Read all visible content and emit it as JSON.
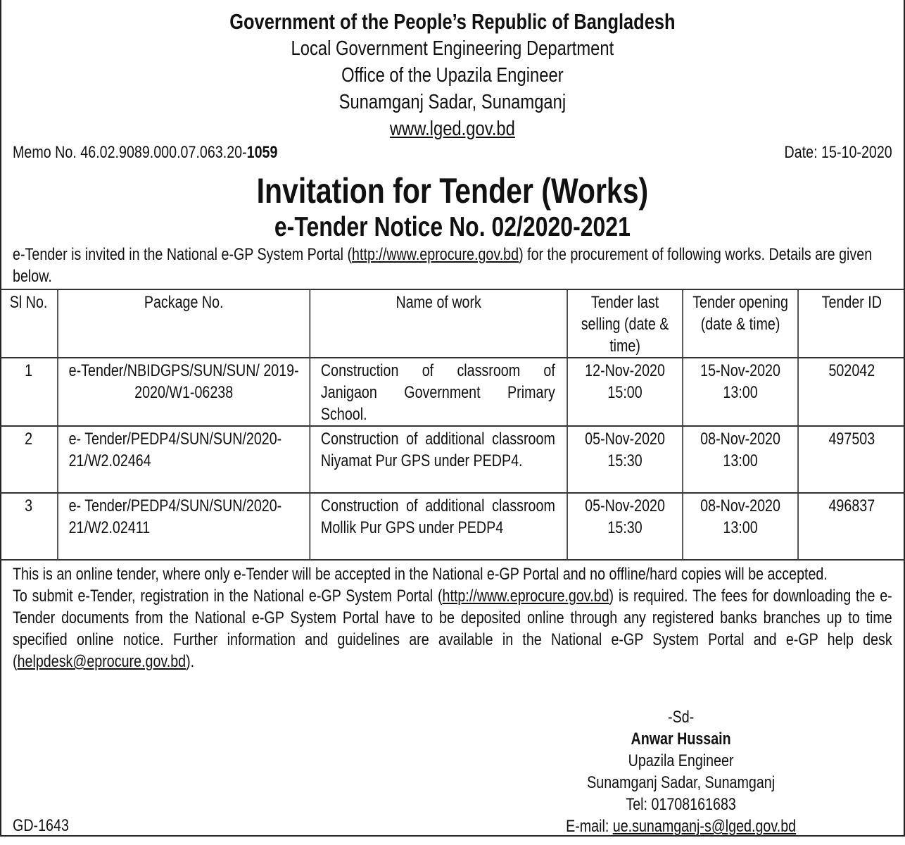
{
  "header": {
    "line1": "Government of the People’s Republic of Bangladesh",
    "line2": "Local Government Engineering Department",
    "line3": "Office of the Upazila Engineer",
    "line4": "Sunamganj Sadar, Sunamganj",
    "website": "www.lged.gov.bd"
  },
  "memo": {
    "prefix": "Memo No. 46.02.9089.000.07.063.20-",
    "number": "1059",
    "date": "Date: 15-10-2020"
  },
  "title": "Invitation for Tender (Works)",
  "subtitle": "e-Tender Notice No. 02/2020-2021",
  "intro": {
    "before": "e-Tender is invited in the National e-GP System Portal (",
    "link": "http://www.eprocure.gov.bd",
    "after": ") for the procurement of following works. Details are given below."
  },
  "table": {
    "headers": [
      "Sl No.",
      "Package No.",
      "Name of work",
      "Tender last selling (date & time)",
      "Tender opening (date & time)",
      "Tender ID"
    ],
    "rows": [
      {
        "sl": "1",
        "package": "e-Tender/NBIDGPS/SUN/SUN/ 2019-2020/W1-06238",
        "work": "Construction of classroom of Janigaon Government Primary School.",
        "selling": "12-Nov-2020 15:00",
        "opening": "15-Nov-2020 13:00",
        "id": "502042"
      },
      {
        "sl": "2",
        "package": "e- Tender/PEDP4/SUN/SUN/2020-21/W2.02464",
        "work": "Construction of additional classroom Niyamat Pur GPS under PEDP4.",
        "selling": "05-Nov-2020 15:30",
        "opening": "08-Nov-2020 13:00",
        "id": "497503"
      },
      {
        "sl": "3",
        "package": "e- Tender/PEDP4/SUN/SUN/2020-21/W2.02411",
        "work": "Construction of additional classroom Mollik Pur GPS under PEDP4",
        "selling": "05-Nov-2020 15:30",
        "opening": "08-Nov-2020 13:00",
        "id": "496837"
      }
    ]
  },
  "note1": "This is an online tender, where only e-Tender will be accepted in the National e-GP Portal and no offline/hard copies will be accepted.",
  "note2": {
    "before": "To submit e-Tender, registration in the National e-GP System Portal (",
    "link": "http://www.eprocure.gov.bd",
    "middle": ") is required. The fees for downloading the e-Tender documents from the National e-GP System Portal have to be deposited online through any registered banks branches up to time specified online notice. Further information and guidelines are available in the National e-GP System Portal and e-GP help desk (",
    "email": "helpdesk@eprocure.gov.bd",
    "after": ")."
  },
  "signature": {
    "sd": "-Sd-",
    "name": "Anwar Hussain",
    "designation": "Upazila Engineer",
    "office": "Sunamganj Sadar, Sunamganj",
    "tel": "Tel: 01708161683",
    "email_label": "E-mail: ",
    "email": "ue.sunamganj-s@lged.gov.bd"
  },
  "code": "GD-1643"
}
